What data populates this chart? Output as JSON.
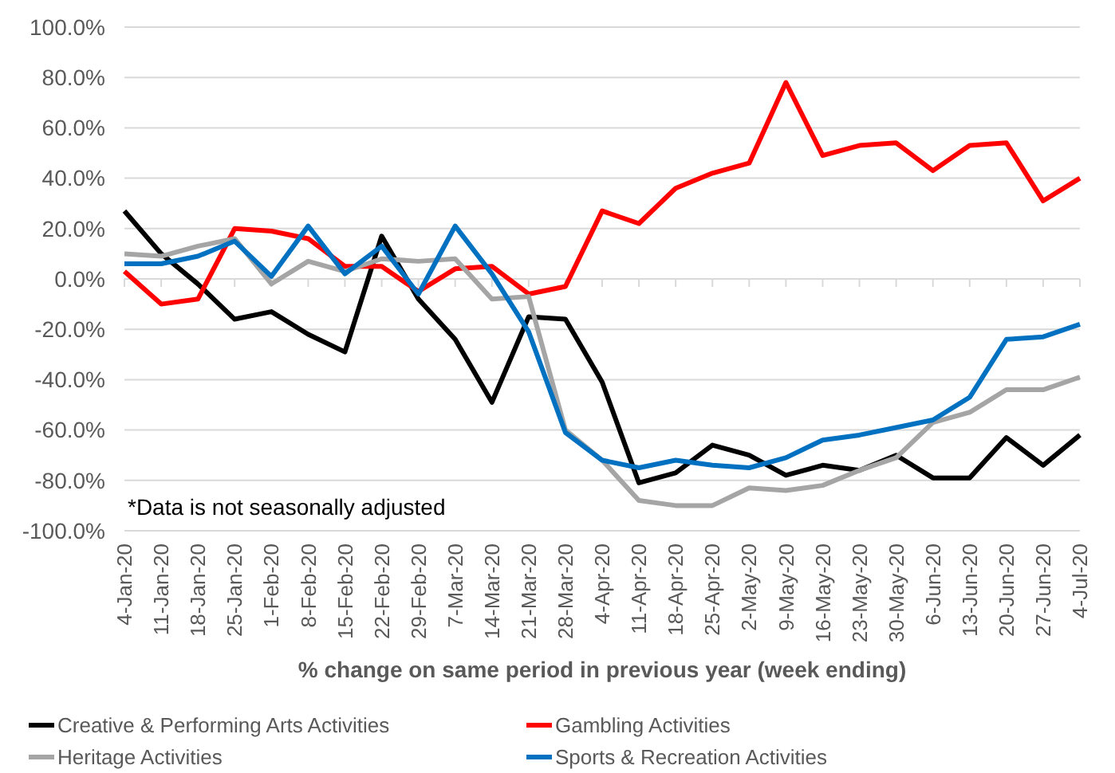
{
  "chart_data": {
    "type": "line",
    "xlabel": "% change on same period in previous year (week ending)",
    "categories": [
      "4-Jan-20",
      "11-Jan-20",
      "18-Jan-20",
      "25-Jan-20",
      "1-Feb-20",
      "8-Feb-20",
      "15-Feb-20",
      "22-Feb-20",
      "29-Feb-20",
      "7-Mar-20",
      "14-Mar-20",
      "21-Mar-20",
      "28-Mar-20",
      "4-Apr-20",
      "11-Apr-20",
      "18-Apr-20",
      "25-Apr-20",
      "2-May-20",
      "9-May-20",
      "16-May-20",
      "23-May-20",
      "30-May-20",
      "6-Jun-20",
      "13-Jun-20",
      "20-Jun-20",
      "27-Jun-20",
      "4-Jul-20"
    ],
    "series": [
      {
        "name": "Creative & Performing Arts Activities",
        "color": "#000000",
        "values": [
          27,
          10,
          -2,
          -16,
          -13,
          -22,
          -29,
          17,
          -8,
          -24,
          -49,
          -15,
          -16,
          -41,
          -81,
          -77,
          -66,
          -70,
          -78,
          -74,
          -76,
          -70,
          -79,
          -79,
          -63,
          -74,
          -62
        ]
      },
      {
        "name": "Gambling Activities",
        "color": "#ff0000",
        "values": [
          3,
          -10,
          -8,
          20,
          19,
          16,
          5,
          5,
          -5,
          4,
          5,
          -6,
          -3,
          27,
          22,
          36,
          42,
          46,
          78,
          49,
          53,
          54,
          43,
          53,
          54,
          31,
          40
        ]
      },
      {
        "name": "Heritage Activities",
        "color": "#a5a5a5",
        "values": [
          10,
          9,
          13,
          16,
          -2,
          7,
          3,
          8,
          7,
          8,
          -8,
          -7,
          -60,
          -72,
          -88,
          -90,
          -90,
          -83,
          -84,
          -82,
          -76,
          -71,
          -57,
          -53,
          -44,
          -44,
          -39
        ]
      },
      {
        "name": "Sports & Recreation Activities",
        "color": "#0070c0",
        "values": [
          6,
          6,
          9,
          15,
          1,
          21,
          2,
          13,
          -6,
          21,
          2,
          -21,
          -61,
          -72,
          -75,
          -72,
          -74,
          -75,
          -71,
          -64,
          -62,
          -59,
          -56,
          -47,
          -24,
          -23,
          -18
        ]
      }
    ],
    "ylim": [
      -100,
      100
    ],
    "yticks": [
      {
        "value": -100,
        "label": "-100.0%"
      },
      {
        "value": -80,
        "label": "-80.0%"
      },
      {
        "value": -60,
        "label": "-60.0%"
      },
      {
        "value": -40,
        "label": "-40.0%"
      },
      {
        "value": -20,
        "label": "-20.0%"
      },
      {
        "value": 0,
        "label": "0.0%"
      },
      {
        "value": 20,
        "label": "20.0%"
      },
      {
        "value": 40,
        "label": "40.0%"
      },
      {
        "value": 60,
        "label": "60.0%"
      },
      {
        "value": 80,
        "label": "80.0%"
      },
      {
        "value": 100,
        "label": "100.0%"
      }
    ],
    "grid": "y",
    "legend": "bottom",
    "marker": "none",
    "line_style": "solid",
    "annotations": [
      "*Data is not seasonally adjusted"
    ]
  }
}
